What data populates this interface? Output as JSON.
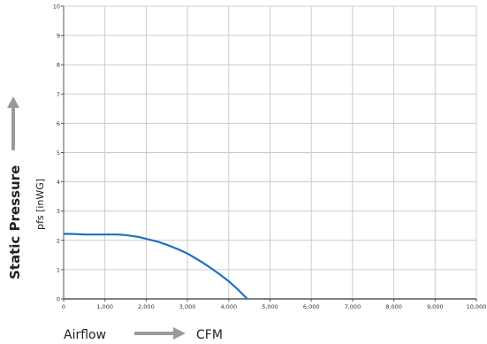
{
  "chart_data": {
    "type": "line",
    "xlabel": "Airflow",
    "xunit": "CFM",
    "ylabel": "Static Pressure",
    "yunit": "pfs [inWG]",
    "xlim": [
      0,
      10000
    ],
    "ylim": [
      0,
      10
    ],
    "grid": true,
    "x_ticks": [
      "0",
      "1,000",
      "2,000",
      "3,000",
      "4,000",
      "5,000",
      "6,000",
      "7,000",
      "8,000",
      "9,000",
      "10,000"
    ],
    "y_ticks": [
      "0",
      "1",
      "2",
      "3",
      "4",
      "5",
      "6",
      "7",
      "8",
      "9",
      "10"
    ],
    "colors": {
      "curve": "#1f6fc5",
      "grid": "#cccccc",
      "arrow": "#9a9a9a"
    },
    "series": [
      {
        "x": [
          0,
          200,
          500,
          800,
          1000,
          1300,
          1500,
          1800,
          2000,
          2300,
          2500,
          2800,
          3000,
          3300,
          3500,
          3800,
          4000,
          4200,
          4450
        ],
        "y": [
          2.22,
          2.22,
          2.2,
          2.2,
          2.2,
          2.2,
          2.18,
          2.12,
          2.05,
          1.95,
          1.85,
          1.68,
          1.55,
          1.3,
          1.12,
          0.82,
          0.6,
          0.35,
          0.0
        ]
      }
    ]
  }
}
